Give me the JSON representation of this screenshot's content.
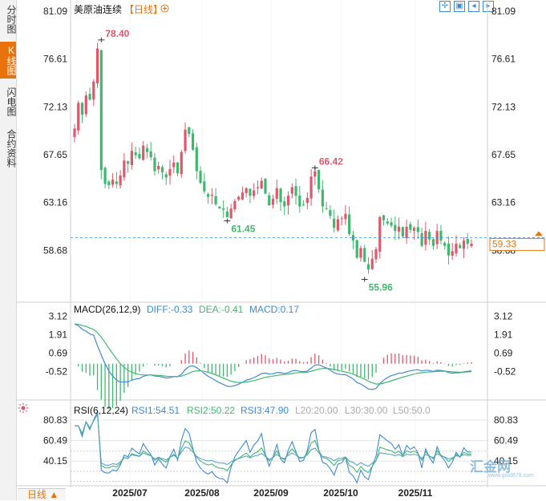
{
  "sidebar": {
    "tabs": [
      {
        "label": "分时图",
        "active": false
      },
      {
        "label": "K线图",
        "active": true
      },
      {
        "label": "闪电图",
        "active": false
      },
      {
        "label": "合约资料",
        "active": false
      }
    ]
  },
  "header": {
    "title": "美原油连续",
    "period": "【日线】",
    "add_icon": "circle-plus-icon",
    "tools": [
      "zoom-in-icon",
      "zoom-out-icon",
      "pan-left-icon",
      "pan-right-icon"
    ]
  },
  "bottom": {
    "period_tab": "日线 ▲"
  },
  "watermark": {
    "text": "汇金网",
    "sub": "www.gold678.com"
  },
  "colors": {
    "up": "#e0566a",
    "down": "#3fb86e",
    "accent": "#e8730c",
    "blue": "#3c8ad6"
  },
  "chart_data": [
    {
      "type": "candlestick",
      "title": "美原油连续",
      "y_ticks": [
        "81.09",
        "76.61",
        "72.13",
        "67.65",
        "63.16",
        "58.68"
      ],
      "ylim": [
        54.2,
        81.09
      ],
      "x_ticks": [
        "2025/07",
        "2025/08",
        "2025/09",
        "2025/10",
        "2025/11"
      ],
      "current_price": "59.33",
      "annotations": [
        {
          "label": "78.40",
          "kind": "high"
        },
        {
          "label": "61.45",
          "kind": "low"
        },
        {
          "label": "66.42",
          "kind": "high"
        },
        {
          "label": "55.96",
          "kind": "low"
        }
      ],
      "closes": [
        70.1,
        72.5,
        71.4,
        73.2,
        72.8,
        74.5,
        77.6,
        66.2,
        64.9,
        64.8,
        65.3,
        64.9,
        65.7,
        67.1,
        66.8,
        68.0,
        67.6,
        67.3,
        68.5,
        67.9,
        67.4,
        66.1,
        66.6,
        66.0,
        65.5,
        66.3,
        66.9,
        65.9,
        67.9,
        70.0,
        69.6,
        68.1,
        66.1,
        65.0,
        64.2,
        63.7,
        63.9,
        63.0,
        62.6,
        62.5,
        61.8,
        62.6,
        63.3,
        63.7,
        64.1,
        64.5,
        63.8,
        64.3,
        64.6,
        65.2,
        64.0,
        62.9,
        63.5,
        64.5,
        63.2,
        62.8,
        63.8,
        64.6,
        63.8,
        62.8,
        62.9,
        63.6,
        65.6,
        66.1,
        64.4,
        62.8,
        62.6,
        61.9,
        60.8,
        61.6,
        61.7,
        62.1,
        60.2,
        59.6,
        58.0,
        58.9,
        57.6,
        56.9,
        57.9,
        58.8,
        61.8,
        61.5,
        61.2,
        61.0,
        60.5,
        60.9,
        60.0,
        60.9,
        60.6,
        60.8,
        60.4,
        59.1,
        60.5,
        59.7,
        59.1,
        60.5,
        59.6,
        59.1,
        58.2,
        58.6,
        59.3,
        58.9,
        59.6,
        59.3,
        59.3
      ]
    },
    {
      "type": "macd",
      "label": "MACD(26,12,9)",
      "values": {
        "DIFF": "DIFF:-0.33",
        "DEA": "DEA:-0.41",
        "MACD": "MACD:0.17"
      },
      "y_ticks": [
        "3.12",
        "1.91",
        "0.69",
        "-0.52"
      ],
      "ylim": [
        -1.9,
        3.45
      ]
    },
    {
      "type": "rsi",
      "label": "RSI(6,12,24)",
      "values": {
        "RSI1": "RSI1:54.51",
        "RSI2": "RSI2:50.22",
        "RSI3": "RSI3:47.90",
        "L20": "L20:20.00",
        "L30": "L30:30.00",
        "L50": "L50:50.0"
      },
      "y_ticks": [
        "80.83",
        "60.49",
        "40.15"
      ],
      "ylim": [
        18,
        88
      ]
    }
  ]
}
